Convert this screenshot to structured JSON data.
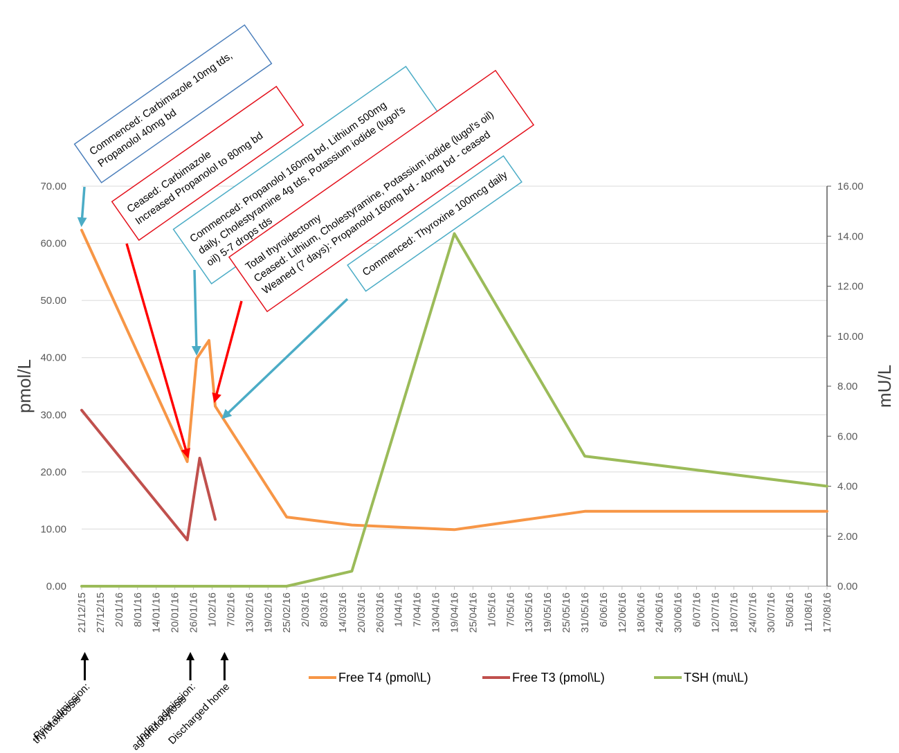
{
  "chart_data": {
    "type": "line",
    "title": "",
    "y_left_label": "pmol/L",
    "y_right_label": "mU/L",
    "y_left_ticks": [
      "0.00",
      "10.00",
      "20.00",
      "30.00",
      "40.00",
      "50.00",
      "60.00",
      "70.00"
    ],
    "y_right_ticks": [
      "0.00",
      "2.00",
      "4.00",
      "6.00",
      "8.00",
      "10.00",
      "12.00",
      "14.00",
      "16.00"
    ],
    "ylim_left": [
      0,
      70
    ],
    "ylim_right": [
      0,
      16
    ],
    "x_tick_labels": [
      "21/12/15",
      "27/12/15",
      "2/01/16",
      "8/01/16",
      "14/01/16",
      "20/01/16",
      "26/01/16",
      "1/02/16",
      "7/02/16",
      "13/02/16",
      "19/02/16",
      "25/02/16",
      "2/03/16",
      "8/03/16",
      "14/03/16",
      "20/03/16",
      "26/03/16",
      "1/04/16",
      "7/04/16",
      "13/04/16",
      "19/04/16",
      "25/04/16",
      "1/05/16",
      "7/05/16",
      "13/05/16",
      "19/05/16",
      "25/05/16",
      "31/05/16",
      "6/06/16",
      "12/06/16",
      "18/06/16",
      "24/06/16",
      "30/06/16",
      "6/07/16",
      "12/07/16",
      "18/07/16",
      "24/07/16",
      "30/07/16",
      "5/08/16",
      "11/08/16",
      "17/08/16"
    ],
    "grid": true,
    "legend_position": "bottom-right",
    "series": [
      {
        "name": "Free T4 (pmol\\L)",
        "axis": "left",
        "color": "#F79646",
        "points": [
          [
            "2015-12-21",
            62.3
          ],
          [
            "2016-01-24",
            21.8
          ],
          [
            "2016-01-27",
            39.8
          ],
          [
            "2016-01-31",
            43.0
          ],
          [
            "2016-02-02",
            31.5
          ],
          [
            "2016-02-25",
            12.1
          ],
          [
            "2016-03-17",
            10.7
          ],
          [
            "2016-04-19",
            9.9
          ],
          [
            "2016-05-31",
            13.1
          ],
          [
            "2016-08-17",
            13.1
          ]
        ]
      },
      {
        "name": "Free T3 (pmol\\L)",
        "axis": "left",
        "color": "#C0504D",
        "points": [
          [
            "2015-12-21",
            30.8
          ],
          [
            "2016-01-24",
            8.1
          ],
          [
            "2016-01-28",
            22.4
          ],
          [
            "2016-02-02",
            11.7
          ]
        ]
      },
      {
        "name": "TSH (mu\\L)",
        "axis": "right",
        "color": "#9BBB59",
        "points": [
          [
            "2015-12-21",
            0.0
          ],
          [
            "2016-02-25",
            0.0
          ],
          [
            "2016-03-17",
            0.6
          ],
          [
            "2016-04-19",
            14.1
          ],
          [
            "2016-05-31",
            5.2
          ],
          [
            "2016-08-17",
            4.0
          ]
        ]
      }
    ],
    "annotations": [
      {
        "lines": [
          "Commenced: Carbimazole 10mg tds,",
          "Propanolol 40mg bd"
        ],
        "color": "#4A7EBB",
        "arrow_color": "#4BACC6",
        "target_date": "2015-12-21",
        "target_value": 62.3
      },
      {
        "lines": [
          "Ceased: Carbimazole",
          "Increased Propanolol to 80mg bd"
        ],
        "color": "#E3101B",
        "arrow_color": "#FF0000",
        "target_date": "2016-01-24",
        "target_value": 21.8
      },
      {
        "lines": [
          "Commenced: Propanolol 160mg bd, Lithium 500mg",
          "daily, Cholestyramine 4g tds, Potassium iodide (lugol's",
          "oil) 5-7 drops tds"
        ],
        "color": "#4BACC6",
        "arrow_color": "#4BACC6",
        "target_date": "2016-01-27",
        "target_value": 39.8
      },
      {
        "lines": [
          "Total thyroidectomy",
          "Ceased: Lithium, Cholestyramine, Potassium iodide (lugol's oil)",
          "Weaned (7 days): Propanolol 160mg bd - 40mg bd - ceased"
        ],
        "color": "#E3101B",
        "arrow_color": "#FF0000",
        "target_date": "2016-02-02",
        "target_value": 31.5
      },
      {
        "lines": [
          "Commenced: Thyroxine 100mcg daily"
        ],
        "color": "#4BACC6",
        "arrow_color": "#4BACC6",
        "target_date": "2016-02-05",
        "target_value": 28.5
      }
    ],
    "events": [
      {
        "lines": [
          "Prior admission:",
          "thyrotoxicosis"
        ],
        "date": "2015-12-22"
      },
      {
        "lines": [
          "Index admission:",
          "agranulocytosis"
        ],
        "date": "2016-01-25"
      },
      {
        "lines": [
          "Discharged home"
        ],
        "date": "2016-02-05"
      }
    ]
  }
}
